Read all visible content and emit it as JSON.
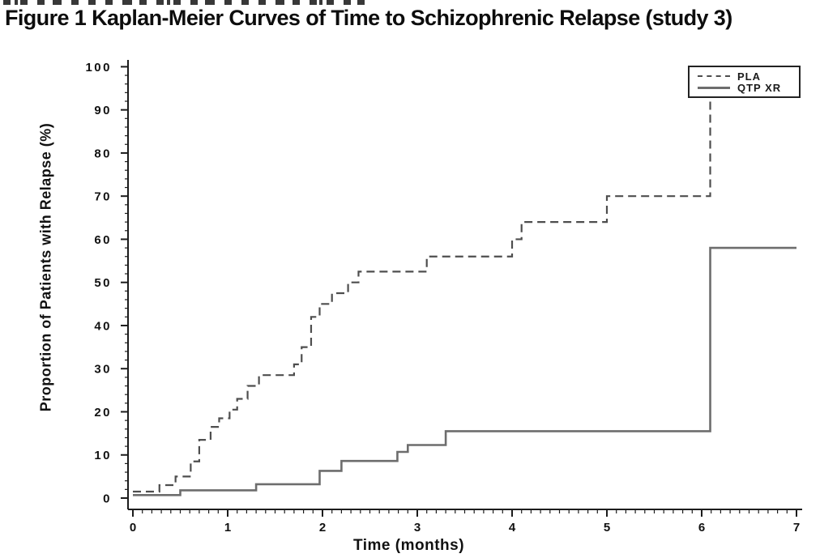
{
  "chart_data": {
    "type": "line",
    "chart_style": "kaplan-meier-step-curves",
    "title": "Figure 1 Kaplan-Meier Curves of Time to Schizophrenic Relapse (study 3)",
    "xlabel": "Time (months)",
    "ylabel": "Proportion of Patients with Relapse (%)",
    "xlim": [
      0,
      7
    ],
    "ylim": [
      0,
      100
    ],
    "x_ticks": [
      0,
      1,
      2,
      3,
      4,
      5,
      6,
      7
    ],
    "y_ticks": [
      0,
      10,
      20,
      30,
      40,
      50,
      60,
      70,
      80,
      90,
      100
    ],
    "x_minor_tick_step": 0.1,
    "y_minor_tick_step": 2,
    "grid": "off",
    "legend_position": "top-right-inside",
    "axis_color": "#1c1c1c",
    "series": [
      {
        "name": "PLA",
        "line_style": "dashed",
        "color": "#4e4e4e",
        "steps_time_percent": [
          [
            0,
            1.5
          ],
          [
            0.28,
            3
          ],
          [
            0.45,
            5
          ],
          [
            0.61,
            8.5
          ],
          [
            0.7,
            13.5
          ],
          [
            0.82,
            16.5
          ],
          [
            0.91,
            18.5
          ],
          [
            1.02,
            20.5
          ],
          [
            1.1,
            23
          ],
          [
            1.21,
            26
          ],
          [
            1.33,
            28.5
          ],
          [
            1.7,
            31
          ],
          [
            1.78,
            35
          ],
          [
            1.88,
            42
          ],
          [
            1.97,
            45
          ],
          [
            2.1,
            47.5
          ],
          [
            2.27,
            50
          ],
          [
            2.38,
            52.5
          ],
          [
            3.1,
            56
          ],
          [
            4.0,
            60
          ],
          [
            4.1,
            64
          ],
          [
            5.0,
            70
          ],
          [
            6.09,
            92
          ]
        ],
        "extend_to_time": null,
        "note": "final jump at ~6.1 months rises behind legend box"
      },
      {
        "name": "QTP XR",
        "line_style": "solid",
        "color": "#6d6d6d",
        "steps_time_percent": [
          [
            0,
            0.7
          ],
          [
            0.5,
            1.8
          ],
          [
            1.3,
            3.2
          ],
          [
            1.97,
            6.3
          ],
          [
            2.2,
            8.6
          ],
          [
            2.79,
            10.7
          ],
          [
            2.9,
            12.3
          ],
          [
            3.3,
            15.5
          ],
          [
            6.09,
            58
          ]
        ],
        "extend_to_time": 7,
        "note": ""
      }
    ]
  }
}
